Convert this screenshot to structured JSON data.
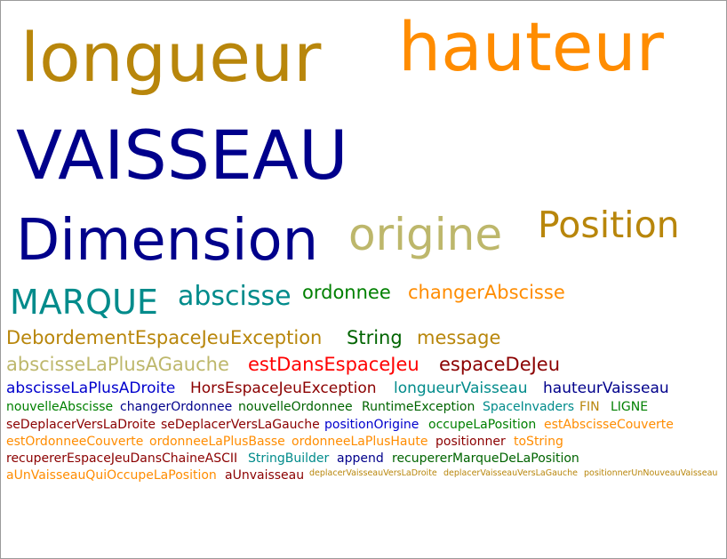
{
  "word_cloud": {
    "words": [
      {
        "text": "longueur",
        "color": "#B8860B",
        "weight": "xl"
      },
      {
        "text": "hauteur",
        "color": "#FF8C00",
        "weight": "xl"
      },
      {
        "text": "VAISSEAU",
        "color": "#00008B",
        "weight": "xl"
      },
      {
        "text": "Dimension",
        "color": "#00008B",
        "weight": "xl"
      },
      {
        "text": "origine",
        "color": "#BDB76B",
        "weight": "l"
      },
      {
        "text": "Position",
        "color": "#B8860B",
        "weight": "l"
      },
      {
        "text": "MARQUE",
        "color": "#008B8B",
        "weight": "m"
      },
      {
        "text": "abscisse",
        "color": "#008B8B",
        "weight": "m"
      },
      {
        "text": "ordonnee",
        "color": "#008000",
        "weight": "s"
      },
      {
        "text": "changerAbscisse",
        "color": "#FF8C00",
        "weight": "s"
      },
      {
        "text": "DebordementEspaceJeuException",
        "color": "#B8860B",
        "weight": "s"
      },
      {
        "text": "String",
        "color": "#006400",
        "weight": "s"
      },
      {
        "text": "message",
        "color": "#B8860B",
        "weight": "s"
      },
      {
        "text": "abscisseLaPlusAGauche",
        "color": "#BDB76B",
        "weight": "s"
      },
      {
        "text": "estDansEspaceJeu",
        "color": "#FF0000",
        "weight": "s"
      },
      {
        "text": "espaceDeJeu",
        "color": "#8B0000",
        "weight": "s"
      },
      {
        "text": "abscisseLaPlusADroite",
        "color": "#0000CD",
        "weight": "xs"
      },
      {
        "text": "HorsEspaceJeuException",
        "color": "#8B0000",
        "weight": "xs"
      },
      {
        "text": "longueurVaisseau",
        "color": "#008B8B",
        "weight": "xs"
      },
      {
        "text": "hauteurVaisseau",
        "color": "#00008B",
        "weight": "xs"
      },
      {
        "text": "nouvelleAbscisse",
        "color": "#008000",
        "weight": "xxs"
      },
      {
        "text": "changerOrdonnee",
        "color": "#00008B",
        "weight": "xxs"
      },
      {
        "text": "nouvelleOrdonnee",
        "color": "#006400",
        "weight": "xxs"
      },
      {
        "text": "RuntimeException",
        "color": "#006400",
        "weight": "xxs"
      },
      {
        "text": "SpaceInvaders",
        "color": "#008B8B",
        "weight": "xxs"
      },
      {
        "text": "FIN",
        "color": "#B8860B",
        "weight": "xxs"
      },
      {
        "text": "LIGNE",
        "color": "#008000",
        "weight": "xxs"
      },
      {
        "text": "seDeplacerVersLaDroite",
        "color": "#8B0000",
        "weight": "xxs"
      },
      {
        "text": "seDeplacerVersLaGauche",
        "color": "#8B0000",
        "weight": "xxs"
      },
      {
        "text": "positionOrigine",
        "color": "#0000CD",
        "weight": "xxs"
      },
      {
        "text": "occupeLaPosition",
        "color": "#008000",
        "weight": "xxs"
      },
      {
        "text": "estAbscisseCouverte",
        "color": "#FF8C00",
        "weight": "xxs"
      },
      {
        "text": "estOrdonneeCouverte",
        "color": "#FF8C00",
        "weight": "xxs"
      },
      {
        "text": "ordonneeLaPlusBasse",
        "color": "#FF8C00",
        "weight": "xxs"
      },
      {
        "text": "ordonneeLaPlusHaute",
        "color": "#FF8C00",
        "weight": "xxs"
      },
      {
        "text": "positionner",
        "color": "#8B0000",
        "weight": "xxs"
      },
      {
        "text": "toString",
        "color": "#FF8C00",
        "weight": "xxs"
      },
      {
        "text": "recupererEspaceJeuDansChaineASCII",
        "color": "#8B0000",
        "weight": "xxs"
      },
      {
        "text": "StringBuilder",
        "color": "#008B8B",
        "weight": "xxs"
      },
      {
        "text": "append",
        "color": "#00008B",
        "weight": "xxs"
      },
      {
        "text": "recupererMarqueDeLaPosition",
        "color": "#006400",
        "weight": "xxs"
      },
      {
        "text": "aUnVaisseauQuiOccupeLaPosition",
        "color": "#FF8C00",
        "weight": "xxs"
      },
      {
        "text": "aUnvaisseau",
        "color": "#8B0000",
        "weight": "xxs"
      },
      {
        "text": "deplacerVaisseauVersLaDroite",
        "color": "#B8860B",
        "weight": "tiny"
      },
      {
        "text": "deplacerVaisseauVersLaGauche",
        "color": "#B8860B",
        "weight": "tiny"
      },
      {
        "text": "positionnerUnNouveauVaisseau",
        "color": "#B8860B",
        "weight": "tiny"
      }
    ]
  }
}
